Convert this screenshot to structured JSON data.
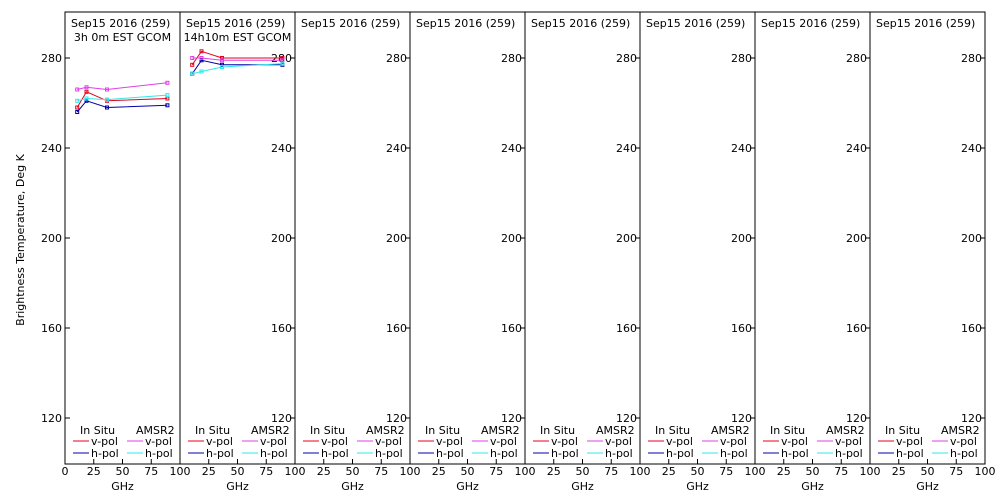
{
  "ylabel": "Brightness Temperature, Deg K",
  "colors": {
    "insitu_v": "#e8001c",
    "insitu_h": "#0000a8",
    "amsr2_v": "#e040e8",
    "amsr2_h": "#30e8e8"
  },
  "chart_data": [
    {
      "type": "line",
      "title": "Sep15 2016 (259)",
      "subtitle": "3h 0m EST GCOM",
      "xlabel": "GHz",
      "xlim": [
        0,
        100
      ],
      "ylim": [
        105,
        295
      ],
      "xticks": [
        "0",
        "25",
        "50",
        "75",
        "100"
      ],
      "yticks": [
        120,
        160,
        200,
        240,
        280
      ],
      "ytick_side": "left",
      "legend": {
        "left_title": "In Situ",
        "right_title": "AMSR2",
        "v_label": "v-pol",
        "h_label": "h-pol"
      },
      "series": [
        {
          "name": "In Situ v-pol",
          "color_key": "insitu_v",
          "x": [
            10.65,
            18.7,
            36.5,
            89.0
          ],
          "y": [
            258.0,
            265.0,
            261.0,
            262.0
          ]
        },
        {
          "name": "In Situ h-pol",
          "color_key": "insitu_h",
          "x": [
            10.65,
            18.7,
            36.5,
            89.0
          ],
          "y": [
            256.0,
            261.0,
            258.0,
            259.0
          ]
        },
        {
          "name": "AMSR2 v-pol",
          "color_key": "amsr2_v",
          "x": [
            10.65,
            18.7,
            36.5,
            89.0
          ],
          "y": [
            266.0,
            267.0,
            266.0,
            269.0
          ]
        },
        {
          "name": "AMSR2 h-pol",
          "color_key": "amsr2_h",
          "x": [
            10.65,
            18.7,
            36.5,
            89.0
          ],
          "y": [
            261.0,
            262.0,
            261.5,
            263.5
          ]
        }
      ]
    },
    {
      "type": "line",
      "title": "Sep15 2016 (259)",
      "subtitle": "14h10m EST GCOM",
      "xlabel": "GHz",
      "xlim": [
        0,
        100
      ],
      "ylim": [
        105,
        295
      ],
      "xticks": [
        "25",
        "50",
        "75",
        "100"
      ],
      "yticks": [
        120,
        160,
        200,
        240,
        280
      ],
      "ytick_side": "right",
      "legend": {
        "left_title": "In Situ",
        "right_title": "AMSR2",
        "v_label": "v-pol",
        "h_label": "h-pol"
      },
      "series": [
        {
          "name": "In Situ v-pol",
          "color_key": "insitu_v",
          "x": [
            10.65,
            18.7,
            36.5,
            89.0
          ],
          "y": [
            277.0,
            283.0,
            280.0,
            280.0
          ]
        },
        {
          "name": "In Situ h-pol",
          "color_key": "insitu_h",
          "x": [
            10.65,
            18.7,
            36.5,
            89.0
          ],
          "y": [
            273.0,
            279.0,
            277.0,
            277.0
          ]
        },
        {
          "name": "AMSR2 v-pol",
          "color_key": "amsr2_v",
          "x": [
            10.65,
            18.7,
            36.5,
            89.0
          ],
          "y": [
            280.0,
            280.0,
            279.0,
            279.0
          ]
        },
        {
          "name": "AMSR2 h-pol",
          "color_key": "amsr2_h",
          "x": [
            10.65,
            18.7,
            36.5,
            89.0
          ],
          "y": [
            273.0,
            274.0,
            276.0,
            277.5
          ]
        }
      ]
    },
    {
      "type": "line",
      "title": "Sep15 2016 (259)",
      "subtitle": "",
      "xlabel": "GHz",
      "xlim": [
        0,
        100
      ],
      "ylim": [
        105,
        295
      ],
      "xticks": [
        "25",
        "50",
        "75",
        "100"
      ],
      "yticks": [
        120,
        160,
        200,
        240,
        280
      ],
      "ytick_side": "right",
      "legend": {
        "left_title": "In Situ",
        "right_title": "AMSR2",
        "v_label": "v-pol",
        "h_label": "h-pol"
      },
      "series": []
    },
    {
      "type": "line",
      "title": "Sep15 2016 (259)",
      "subtitle": "",
      "xlabel": "GHz",
      "xlim": [
        0,
        100
      ],
      "ylim": [
        105,
        295
      ],
      "xticks": [
        "25",
        "50",
        "75",
        "100"
      ],
      "yticks": [
        120,
        160,
        200,
        240,
        280
      ],
      "ytick_side": "right",
      "legend": {
        "left_title": "In Situ",
        "right_title": "AMSR2",
        "v_label": "v-pol",
        "h_label": "h-pol"
      },
      "series": []
    },
    {
      "type": "line",
      "title": "Sep15 2016 (259)",
      "subtitle": "",
      "xlabel": "GHz",
      "xlim": [
        0,
        100
      ],
      "ylim": [
        105,
        295
      ],
      "xticks": [
        "25",
        "50",
        "75",
        "100"
      ],
      "yticks": [
        120,
        160,
        200,
        240,
        280
      ],
      "ytick_side": "right",
      "legend": {
        "left_title": "In Situ",
        "right_title": "AMSR2",
        "v_label": "v-pol",
        "h_label": "h-pol"
      },
      "series": []
    },
    {
      "type": "line",
      "title": "Sep15 2016 (259)",
      "subtitle": "",
      "xlabel": "GHz",
      "xlim": [
        0,
        100
      ],
      "ylim": [
        105,
        295
      ],
      "xticks": [
        "25",
        "50",
        "75",
        "100"
      ],
      "yticks": [
        120,
        160,
        200,
        240,
        280
      ],
      "ytick_side": "right",
      "legend": {
        "left_title": "In Situ",
        "right_title": "AMSR2",
        "v_label": "v-pol",
        "h_label": "h-pol"
      },
      "series": []
    },
    {
      "type": "line",
      "title": "Sep15 2016 (259)",
      "subtitle": "",
      "xlabel": "GHz",
      "xlim": [
        0,
        100
      ],
      "ylim": [
        105,
        295
      ],
      "xticks": [
        "25",
        "50",
        "75",
        "100"
      ],
      "yticks": [
        120,
        160,
        200,
        240,
        280
      ],
      "ytick_side": "right",
      "legend": {
        "left_title": "In Situ",
        "right_title": "AMSR2",
        "v_label": "v-pol",
        "h_label": "h-pol"
      },
      "series": []
    },
    {
      "type": "line",
      "title": "Sep15 2016 (259)",
      "subtitle": "",
      "xlabel": "GHz",
      "xlim": [
        0,
        100
      ],
      "ylim": [
        105,
        295
      ],
      "xticks": [
        "25",
        "50",
        "75",
        "100"
      ],
      "yticks": [
        120,
        160,
        200,
        240,
        280
      ],
      "ytick_side": "right",
      "legend": {
        "left_title": "In Situ",
        "right_title": "AMSR2",
        "v_label": "v-pol",
        "h_label": "h-pol"
      },
      "series": []
    }
  ]
}
